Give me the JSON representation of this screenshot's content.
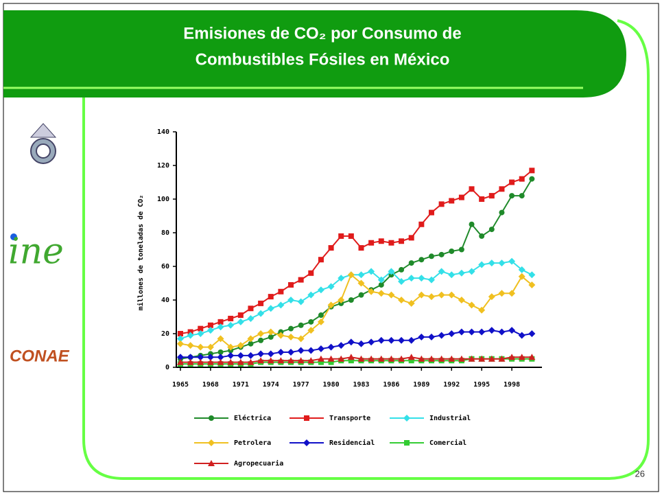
{
  "title_lines": [
    "Emisiones de CO₂ por Consumo de",
    "Combustibles Fósiles en México"
  ],
  "logos": {
    "ine": "ine",
    "conae": "CONAE"
  },
  "page_number": "26",
  "chart_data": {
    "type": "line",
    "ylabel": "millones de toneladas de CO₂",
    "x": [
      1965,
      1966,
      1967,
      1968,
      1969,
      1970,
      1971,
      1972,
      1973,
      1974,
      1975,
      1976,
      1977,
      1978,
      1979,
      1980,
      1981,
      1982,
      1983,
      1984,
      1985,
      1986,
      1987,
      1988,
      1989,
      1990,
      1991,
      1992,
      1993,
      1994,
      1995,
      1996,
      1997,
      1998,
      1999,
      2000
    ],
    "xlim": [
      1965,
      2001
    ],
    "xticks": [
      1965,
      1968,
      1971,
      1974,
      1977,
      1980,
      1983,
      1986,
      1989,
      1992,
      1995,
      1998
    ],
    "ylim": [
      0,
      140
    ],
    "yticks": [
      0,
      20,
      40,
      60,
      80,
      100,
      120,
      140
    ],
    "series": [
      {
        "name": "Eléctrica",
        "color": "#1f8a2a",
        "marker": "circle",
        "values": [
          5,
          6,
          7,
          8,
          9,
          10,
          12,
          14,
          16,
          18,
          21,
          23,
          25,
          27,
          31,
          36,
          38,
          40,
          43,
          46,
          49,
          55,
          58,
          62,
          64,
          66,
          67,
          69,
          70,
          85,
          78,
          82,
          92,
          102,
          102,
          112
        ]
      },
      {
        "name": "Transporte",
        "color": "#e01b1b",
        "marker": "square",
        "values": [
          20,
          21,
          23,
          25,
          27,
          29,
          31,
          35,
          38,
          42,
          45,
          49,
          52,
          56,
          64,
          71,
          78,
          78,
          71,
          74,
          75,
          74,
          75,
          77,
          85,
          92,
          97,
          99,
          101,
          106,
          100,
          102,
          106,
          110,
          112,
          117
        ]
      },
      {
        "name": "Industrial",
        "color": "#33e0e8",
        "marker": "diamond",
        "values": [
          17,
          19,
          20,
          22,
          24,
          25,
          27,
          29,
          32,
          35,
          37,
          40,
          39,
          43,
          46,
          48,
          53,
          55,
          55,
          57,
          52,
          57,
          51,
          53,
          53,
          52,
          57,
          55,
          56,
          57,
          61,
          62,
          62,
          63,
          58,
          55
        ]
      },
      {
        "name": "Petrolera",
        "color": "#f0c020",
        "marker": "diamond",
        "values": [
          14,
          13,
          12,
          12,
          17,
          12,
          13,
          17,
          20,
          21,
          19,
          18,
          17,
          22,
          27,
          37,
          40,
          55,
          50,
          45,
          44,
          43,
          40,
          38,
          43,
          42,
          43,
          43,
          40,
          37,
          34,
          42,
          44,
          44,
          54,
          49
        ]
      },
      {
        "name": "Residencial",
        "color": "#1010c8",
        "marker": "diamond",
        "values": [
          6,
          6,
          6,
          6,
          6,
          7,
          7,
          7,
          8,
          8,
          9,
          9,
          10,
          10,
          11,
          12,
          13,
          15,
          14,
          15,
          16,
          16,
          16,
          16,
          18,
          18,
          19,
          20,
          21,
          21,
          21,
          22,
          21,
          22,
          19,
          20
        ]
      },
      {
        "name": "Comercial",
        "color": "#33cc33",
        "marker": "square",
        "values": [
          2,
          2,
          2,
          2,
          2,
          2,
          2,
          2,
          3,
          3,
          3,
          3,
          3,
          3,
          3,
          3,
          4,
          4,
          4,
          4,
          4,
          4,
          4,
          4,
          4,
          4,
          4,
          4,
          4,
          5,
          5,
          5,
          5,
          5,
          5,
          5
        ]
      },
      {
        "name": "Agropecuaria",
        "color": "#d02020",
        "marker": "triangle",
        "values": [
          3,
          3,
          3,
          3,
          3,
          3,
          3,
          3,
          4,
          4,
          4,
          4,
          4,
          4,
          5,
          5,
          5,
          6,
          5,
          5,
          5,
          5,
          5,
          6,
          5,
          5,
          5,
          5,
          5,
          5,
          5,
          5,
          5,
          6,
          6,
          6
        ]
      }
    ]
  }
}
